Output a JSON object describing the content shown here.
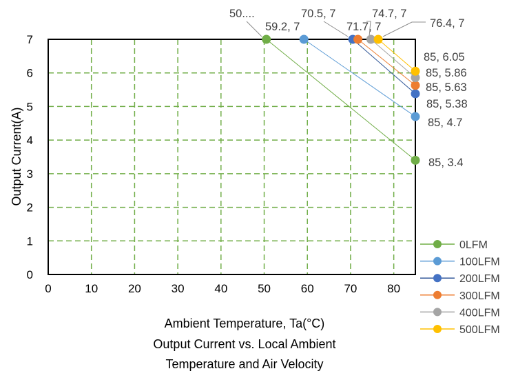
{
  "chart_data": {
    "type": "line",
    "title": "Output Current vs. Local Ambient Temperature and Air Velocity",
    "title_lines": [
      "Output Current vs. Local Ambient",
      "Temperature and Air Velocity"
    ],
    "xlabel": "Ambient Temperature, Ta(°C)",
    "ylabel": "Output Current(A)",
    "xlim": [
      0,
      85
    ],
    "ylim": [
      0,
      7
    ],
    "xticks": [
      0,
      10,
      20,
      30,
      40,
      50,
      60,
      70,
      80
    ],
    "yticks": [
      0,
      1,
      2,
      3,
      4,
      5,
      6,
      7
    ],
    "grid": true,
    "legend_position": "right",
    "series": [
      {
        "name": "0LFM",
        "color": "#70AD47",
        "line_color": "#70AD47",
        "points": [
          {
            "x": 50.5,
            "y": 7,
            "label": "50...."
          },
          {
            "x": 85,
            "y": 3.4,
            "label": "85, 3.4"
          }
        ]
      },
      {
        "name": "100LFM",
        "color": "#5B9BD5",
        "line_color": "#5B9BD5",
        "points": [
          {
            "x": 59.2,
            "y": 7,
            "label": "59.2, 7"
          },
          {
            "x": 85,
            "y": 4.7,
            "label": "85, 4.7"
          }
        ]
      },
      {
        "name": "200LFM",
        "color": "#4472C4",
        "line_color": "#2F5597",
        "points": [
          {
            "x": 70.5,
            "y": 7,
            "label": "70.5, 7"
          },
          {
            "x": 85,
            "y": 5.38,
            "label": "85, 5.38"
          }
        ]
      },
      {
        "name": "300LFM",
        "color": "#ED7D31",
        "line_color": "#ED7D31",
        "points": [
          {
            "x": 71.7,
            "y": 7,
            "label": "71.7, 7"
          },
          {
            "x": 85,
            "y": 5.63,
            "label": "85, 5.63"
          }
        ]
      },
      {
        "name": "400LFM",
        "color": "#A5A5A5",
        "line_color": "#A5A5A5",
        "points": [
          {
            "x": 74.7,
            "y": 7,
            "label": "74.7, 7"
          },
          {
            "x": 85,
            "y": 5.86,
            "label": "85, 5.86"
          }
        ]
      },
      {
        "name": "500LFM",
        "color": "#FFC000",
        "line_color": "#FFC000",
        "points": [
          {
            "x": 76.4,
            "y": 7,
            "label": "76.4, 7"
          },
          {
            "x": 85,
            "y": 6.05,
            "label": "85, 6.05"
          }
        ]
      }
    ]
  }
}
